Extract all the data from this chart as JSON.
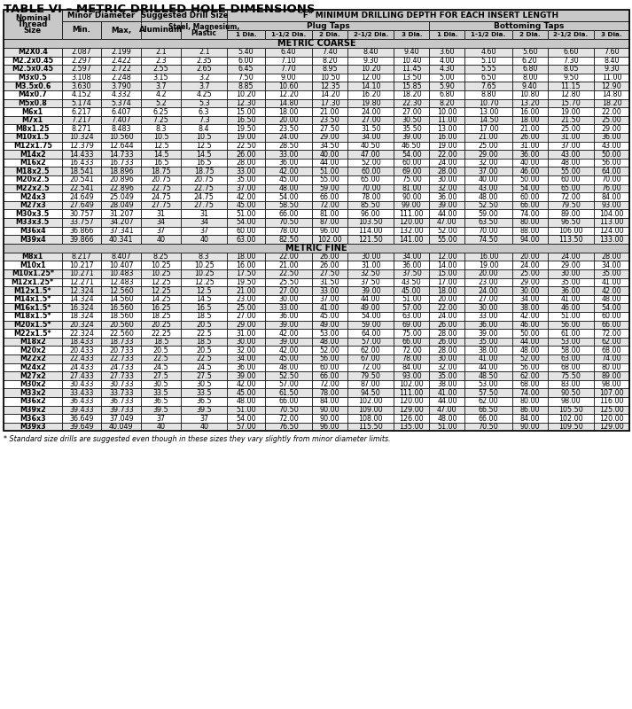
{
  "title": "TABLE VI – METRIC DRILLED HOLE DIMENSIONS",
  "footnote": "* Standard size drills are suggested even though in these sizes they vary slightly from minor diameter limits.",
  "metric_coarse_label": "METRIC COARSE",
  "metric_fine_label": "METRIC FINE",
  "coarse_rows": [
    [
      "M2X0.4",
      "2.087",
      "2.199",
      "2.1",
      "2.1",
      "5.40",
      "6.40",
      "7.40",
      "8.40",
      "9.40",
      "3.60",
      "4.60",
      "5.60",
      "6.60",
      "7.60"
    ],
    [
      "M2.2x0.45",
      "2.297",
      "2.422",
      "2.3",
      "2.35",
      "6.00",
      "7.10",
      "8.20",
      "9.30",
      "10.40",
      "4.00",
      "5.10",
      "6.20",
      "7.30",
      "8.40"
    ],
    [
      "M2.5x0.45",
      "2.597",
      "2.722",
      "2.55",
      "2.65",
      "6.45",
      "7.70",
      "8.95",
      "10.20",
      "11.45",
      "4.30",
      "5.55",
      "6.80",
      "8.05",
      "9.30"
    ],
    [
      "M3x0.5",
      "3.108",
      "2.248",
      "3.15",
      "3.2",
      "7.50",
      "9.00",
      "10.50",
      "12.00",
      "13.50",
      "5.00",
      "6.50",
      "8.00",
      "9.50",
      "11.00"
    ],
    [
      "M3.5x0.6",
      "3.630",
      "3.790",
      "3.7",
      "3.7",
      "8.85",
      "10.60",
      "12.35",
      "14.10",
      "15.85",
      "5.90",
      "7.65",
      "9.40",
      "11.15",
      "12.90"
    ],
    [
      "M4x0.7",
      "4.152",
      "4.332",
      "4.2",
      "4.25",
      "10.20",
      "12.20",
      "14.20",
      "16.20",
      "18.20",
      "6.80",
      "8.80",
      "10.80",
      "12.80",
      "14.80"
    ],
    [
      "M5x0.8",
      "5.174",
      "5.374",
      "5.2",
      "5.3",
      "12.30",
      "14.80",
      "17.30",
      "19.80",
      "22.30",
      "8.20",
      "10.70",
      "13.20",
      "15.70",
      "18.20"
    ],
    [
      "M6x1",
      "6.217",
      "6.407",
      "6.25",
      "6.3",
      "15.00",
      "18.00",
      "21.00",
      "24.00",
      "27.00",
      "10.00",
      "13.00",
      "16.00",
      "19.00",
      "22.00"
    ],
    [
      "M7x1",
      "7.217",
      "7.407",
      "7.25",
      "7.3",
      "16.50",
      "20.00",
      "23.50",
      "27.00",
      "30.50",
      "11.00",
      "14.50",
      "18.00",
      "21.50",
      "25.00"
    ],
    [
      "M8x1.25",
      "8.271",
      "8.483",
      "8.3",
      "8.4",
      "19.50",
      "23.50",
      "27.50",
      "31.50",
      "35.50",
      "13.00",
      "17.00",
      "21.00",
      "25.00",
      "29.00"
    ],
    [
      "M10x1.5",
      "10.324",
      "10.560",
      "10.5",
      "10.5",
      "19.00",
      "24.00",
      "29.00",
      "34.00",
      "39.00",
      "16.00",
      "21.00",
      "26.00",
      "31.00",
      "36.00"
    ],
    [
      "M12x1.75",
      "12.379",
      "12.644",
      "12.5",
      "12.5",
      "22.50",
      "28.50",
      "34.50",
      "40.50",
      "46.50",
      "19.00",
      "25.00",
      "31.00",
      "37.00",
      "43.00"
    ],
    [
      "M14x2",
      "14.433",
      "14.733",
      "14.5",
      "14.5",
      "26.00",
      "33.00",
      "40.00",
      "47.00",
      "54.00",
      "22.00",
      "29.00",
      "36.00",
      "43.00",
      "50.00"
    ],
    [
      "M16x2",
      "16.433",
      "16.733",
      "16.5",
      "16.5",
      "28.00",
      "36.00",
      "44.00",
      "52.00",
      "60.00",
      "24.00",
      "32.00",
      "40.00",
      "48.00",
      "56.00"
    ],
    [
      "M18x2.5",
      "18.541",
      "18.896",
      "18.75",
      "18.75",
      "33.00",
      "42.00",
      "51.00",
      "60.00",
      "69.00",
      "28.00",
      "37.00",
      "46.00",
      "55.00",
      "64.00"
    ],
    [
      "M20x2.5",
      "20.541",
      "20.896",
      "20.75",
      "20.75",
      "35.00",
      "45.00",
      "55.00",
      "65.00",
      "75.00",
      "30.00",
      "40.00",
      "50.00",
      "60.00",
      "70.00"
    ],
    [
      "M22x2.5",
      "22.541",
      "22.896",
      "22.75",
      "22.75",
      "37.00",
      "48.00",
      "59.00",
      "70.00",
      "81.00",
      "32.00",
      "43.00",
      "54.00",
      "65.00",
      "76.00"
    ],
    [
      "M24x3",
      "24.649",
      "25.049",
      "24.75",
      "24.75",
      "42.00",
      "54.00",
      "66.00",
      "78.00",
      "90.00",
      "36.00",
      "48.00",
      "60.00",
      "72.00",
      "84.00"
    ],
    [
      "M27x3",
      "27.649",
      "28.049",
      "27.75",
      "27.75",
      "45.00",
      "58.50",
      "72.00",
      "85.50",
      "99.00",
      "39.00",
      "52.50",
      "66.00",
      "79.50",
      "93.00"
    ],
    [
      "M30x3.5",
      "30.757",
      "31.207",
      "31",
      "31",
      "51.00",
      "66.00",
      "81.00",
      "96.00",
      "111.00",
      "44.00",
      "59.00",
      "74.00",
      "89.00",
      "104.00"
    ],
    [
      "M33x3.5",
      "33.757",
      "34.207",
      "34",
      "34",
      "54.00",
      "70.50",
      "87.00",
      "103.50",
      "120.00",
      "47.00",
      "63.50",
      "80.00",
      "96.50",
      "113.00"
    ],
    [
      "M36x4",
      "36.866",
      "37.341",
      "37",
      "37",
      "60.00",
      "78.00",
      "96.00",
      "114.00",
      "132.00",
      "52.00",
      "70.00",
      "88.00",
      "106.00",
      "124.00"
    ],
    [
      "M39x4",
      "39.866",
      "40.341",
      "40",
      "40",
      "63.00",
      "82.50",
      "102.00",
      "121.50",
      "141.00",
      "55.00",
      "74.50",
      "94.00",
      "113.50",
      "133.00"
    ]
  ],
  "fine_rows": [
    [
      "M8x1",
      "8.217",
      "8.407",
      "8.25",
      "8.3",
      "18.00",
      "22.00",
      "26.00",
      "30.00",
      "34.00",
      "12.00",
      "16.00",
      "20.00",
      "24.00",
      "28.00"
    ],
    [
      "M10x1",
      "10.217",
      "10.407",
      "10.25",
      "10.25",
      "16.00",
      "21.00",
      "26.00",
      "31.00",
      "36.00",
      "14.00",
      "19.00",
      "24.00",
      "29.00",
      "34.00"
    ],
    [
      "M10x1.25*",
      "10.271",
      "10.483",
      "10.25",
      "10.25",
      "17.50",
      "22.50",
      "27.50",
      "32.50",
      "37.50",
      "15.00",
      "20.00",
      "25.00",
      "30.00",
      "35.00"
    ],
    [
      "M12x1.25*",
      "12.271",
      "12.483",
      "12.25",
      "12.25",
      "19.50",
      "25.50",
      "31.50",
      "37.50",
      "43.50",
      "17.00",
      "23.00",
      "29.00",
      "35.00",
      "41.00"
    ],
    [
      "M12x1.5*",
      "12.324",
      "12.560",
      "12.25",
      "12.5",
      "21.00",
      "27.00",
      "33.00",
      "39.00",
      "45.00",
      "18.00",
      "24.00",
      "30.00",
      "36.00",
      "42.00"
    ],
    [
      "M14x1.5*",
      "14.324",
      "14.560",
      "14.25",
      "14.5",
      "23.00",
      "30.00",
      "37.00",
      "44.00",
      "51.00",
      "20.00",
      "27.00",
      "34.00",
      "41.00",
      "48.00"
    ],
    [
      "M16x1.5*",
      "16.324",
      "16.560",
      "16.25",
      "16.5",
      "25.00",
      "33.00",
      "41.00",
      "49.00",
      "57.00",
      "22.00",
      "30.00",
      "38.00",
      "46.00",
      "54.00"
    ],
    [
      "M18x1.5*",
      "18.324",
      "18.560",
      "18.25",
      "18.5",
      "27.00",
      "36.00",
      "45.00",
      "54.00",
      "63.00",
      "24.00",
      "33.00",
      "42.00",
      "51.00",
      "60.00"
    ],
    [
      "M20x1.5*",
      "20.324",
      "20.560",
      "20.25",
      "20.5",
      "29.00",
      "39.00",
      "49.00",
      "59.00",
      "69.00",
      "26.00",
      "36.00",
      "46.00",
      "56.00",
      "66.00"
    ],
    [
      "M22x1.5*",
      "22.324",
      "22.560",
      "22.25",
      "22.5",
      "31.00",
      "42.00",
      "53.00",
      "64.00",
      "75.00",
      "28.00",
      "39.00",
      "50.00",
      "61.00",
      "72.00"
    ],
    [
      "M18x2",
      "18.433",
      "18.733",
      "18.5",
      "18.5",
      "30.00",
      "39.00",
      "48.00",
      "57.00",
      "66.00",
      "26.00",
      "35.00",
      "44.00",
      "53.00",
      "62.00"
    ],
    [
      "M20x2",
      "20.433",
      "20.733",
      "20.5",
      "20.5",
      "32.00",
      "42.00",
      "52.00",
      "62.00",
      "72.00",
      "28.00",
      "38.00",
      "48.00",
      "58.00",
      "68.00"
    ],
    [
      "M22x2",
      "22.433",
      "22.733",
      "22.5",
      "22.5",
      "34.00",
      "45.00",
      "56.00",
      "67.00",
      "78.00",
      "30.00",
      "41.00",
      "52.00",
      "63.00",
      "74.00"
    ],
    [
      "M24x2",
      "24.433",
      "24.733",
      "24.5",
      "24.5",
      "36.00",
      "48.00",
      "60.00",
      "72.00",
      "84.00",
      "32.00",
      "44.00",
      "56.00",
      "68.00",
      "80.00"
    ],
    [
      "M27x2",
      "27.433",
      "27.733",
      "27.5",
      "27.5",
      "39.00",
      "52.50",
      "66.00",
      "79.50",
      "93.00",
      "35.00",
      "48.50",
      "62.00",
      "75.50",
      "89.00"
    ],
    [
      "M30x2",
      "30.433",
      "30.733",
      "30.5",
      "30.5",
      "42.00",
      "57.00",
      "72.00",
      "87.00",
      "102.00",
      "38.00",
      "53.00",
      "68.00",
      "83.00",
      "98.00"
    ],
    [
      "M33x2",
      "33.433",
      "33.733",
      "33.5",
      "33.5",
      "45.00",
      "61.50",
      "78.00",
      "94.50",
      "111.00",
      "41.00",
      "57.50",
      "74.00",
      "90.50",
      "107.00"
    ],
    [
      "M36x2",
      "36.433",
      "36.733",
      "36.5",
      "36.5",
      "48.00",
      "66.00",
      "84.00",
      "102.00",
      "120.00",
      "44.00",
      "62.00",
      "80.00",
      "98.00",
      "116.00"
    ],
    [
      "M39x2",
      "39.433",
      "39.733",
      "39.5",
      "39.5",
      "51.00",
      "70.50",
      "90.00",
      "109.00",
      "129.00",
      "47.00",
      "66.50",
      "86.00",
      "105.50",
      "125.00"
    ],
    [
      "M36x3",
      "36.649",
      "37.049",
      "37",
      "37",
      "54.00",
      "72.00",
      "90.00",
      "108.00",
      "126.00",
      "48.00",
      "66.00",
      "84.00",
      "102.00",
      "120.00"
    ],
    [
      "M39x3",
      "39.649",
      "40.049",
      "40",
      "40",
      "57.00",
      "76.50",
      "96.00",
      "115.50",
      "135.00",
      "51.00",
      "70.50",
      "90.00",
      "109.50",
      "129.00"
    ]
  ],
  "bg_color": "#ffffff",
  "header_bg": "#c8c8c8",
  "row_bg_alt": "#e4e4e4",
  "row_bg_white": "#ffffff",
  "text_color": "#000000"
}
